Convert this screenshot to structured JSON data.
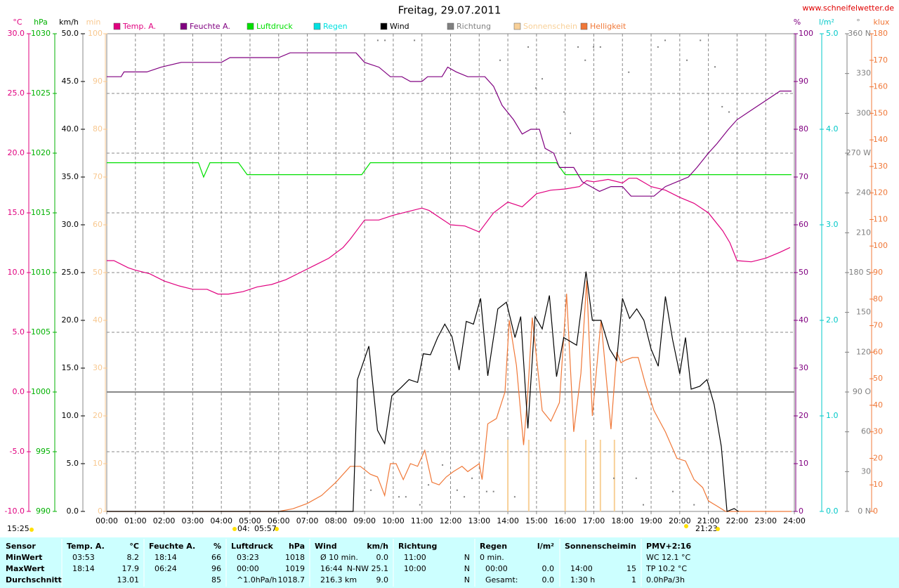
{
  "chart_data": {
    "type": "line",
    "title": "Freitag, 29.07.2011",
    "source": "www.schneifelwetter.de",
    "xlim": [
      0,
      24
    ],
    "xticks": [
      {
        "value": 0,
        "label": "00:00"
      },
      {
        "value": 1,
        "label": "01:00"
      },
      {
        "value": 2,
        "label": "02:00"
      },
      {
        "value": 3,
        "label": "03:00"
      },
      {
        "value": 4,
        "label": "04:00"
      },
      {
        "value": 5,
        "label": "05:00"
      },
      {
        "value": 6,
        "label": "06:00"
      },
      {
        "value": 7,
        "label": "07:00"
      },
      {
        "value": 8,
        "label": "08:00"
      },
      {
        "value": 9,
        "label": "09:00"
      },
      {
        "value": 10,
        "label": "10:00"
      },
      {
        "value": 11,
        "label": "11:00"
      },
      {
        "value": 12,
        "label": "12:00"
      },
      {
        "value": 13,
        "label": "13:00"
      },
      {
        "value": 14,
        "label": "14:00"
      },
      {
        "value": 15,
        "label": "15:00"
      },
      {
        "value": 16,
        "label": "16:00"
      },
      {
        "value": 17,
        "label": "17:00"
      },
      {
        "value": 18,
        "label": "18:00"
      },
      {
        "value": 19,
        "label": "19:00"
      },
      {
        "value": 20,
        "label": "20:00"
      },
      {
        "value": 21,
        "label": "21:00"
      },
      {
        "value": 22,
        "label": "22:00"
      },
      {
        "value": 23,
        "label": "23:00"
      },
      {
        "value": 24,
        "label": "24:00"
      }
    ],
    "grid": true,
    "axes": [
      {
        "unit": "°C",
        "side": "left",
        "color": "#e0007f",
        "grid": true,
        "zero_line": true,
        "ylim": [
          -10,
          30
        ],
        "yticks": [
          {
            "value": -10,
            "label": "-10.0"
          },
          {
            "value": -5,
            "label": "-5.0"
          },
          {
            "value": 0,
            "label": "0.0"
          },
          {
            "value": 5,
            "label": "5.0"
          },
          {
            "value": 10,
            "label": "10.0"
          },
          {
            "value": 15,
            "label": "15.0"
          },
          {
            "value": 20,
            "label": "20.0"
          },
          {
            "value": 25,
            "label": "25.0"
          },
          {
            "value": 30,
            "label": "30.0"
          }
        ]
      },
      {
        "unit": "hPa",
        "side": "left",
        "color": "#00b000",
        "ylim": [
          990,
          1030
        ],
        "yticks": [
          990,
          995,
          1000,
          1005,
          1010,
          1015,
          1020,
          1025,
          1030
        ]
      },
      {
        "unit": "km/h",
        "side": "left",
        "color": "#000000",
        "ylim": [
          0,
          50
        ],
        "yticks": [
          {
            "value": 0,
            "label": "0.0"
          },
          {
            "value": 5,
            "label": "5.0"
          },
          {
            "value": 10,
            "label": "10.0"
          },
          {
            "value": 15,
            "label": "15.0"
          },
          {
            "value": 20,
            "label": "20.0"
          },
          {
            "value": 25,
            "label": "25.0"
          },
          {
            "value": 30,
            "label": "30.0"
          },
          {
            "value": 35,
            "label": "35.0"
          },
          {
            "value": 40,
            "label": "40.0"
          },
          {
            "value": 45,
            "label": "45.0"
          },
          {
            "value": 50,
            "label": "50.0"
          }
        ]
      },
      {
        "unit": "min",
        "side": "left",
        "color": "#f8c890",
        "ylim": [
          0,
          100
        ],
        "yticks": [
          0,
          10,
          20,
          30,
          40,
          50,
          60,
          70,
          80,
          90,
          100
        ]
      },
      {
        "unit": "%",
        "side": "right",
        "color": "#800080",
        "ylim": [
          0,
          100
        ],
        "yticks": [
          0,
          10,
          20,
          30,
          40,
          50,
          60,
          70,
          80,
          90,
          100
        ]
      },
      {
        "unit": "l/m²",
        "side": "right",
        "color": "#00c8c8",
        "ylim": [
          0,
          5
        ],
        "yticks": [
          {
            "value": 0,
            "label": "0.0"
          },
          {
            "value": 1,
            "label": "1.0"
          },
          {
            "value": 2,
            "label": "2.0"
          },
          {
            "value": 3,
            "label": "3.0"
          },
          {
            "value": 4,
            "label": "4.0"
          },
          {
            "value": 5,
            "label": "5.0"
          }
        ]
      },
      {
        "unit": "°",
        "side": "right",
        "color": "#808080",
        "ylim": [
          0,
          360
        ],
        "yticks": [
          {
            "value": 0,
            "label": "0 N"
          },
          30,
          60,
          {
            "value": 90,
            "label": "90 O"
          },
          120,
          150,
          {
            "value": 180,
            "label": "180 S"
          },
          210,
          240,
          {
            "value": 270,
            "label": "270 W"
          },
          300,
          330,
          {
            "value": 360,
            "label": "360 N"
          }
        ]
      },
      {
        "unit": "klux",
        "side": "right",
        "color": "#f07838",
        "ylim": [
          0,
          180
        ],
        "yticks": [
          0,
          10,
          20,
          30,
          40,
          50,
          60,
          70,
          80,
          90,
          100,
          110,
          120,
          130,
          140,
          150,
          160,
          170,
          180
        ]
      }
    ],
    "series": [
      {
        "name": "Temp. A.",
        "color": "#e0007f",
        "axis": "°C",
        "style": "line",
        "x": [
          0,
          0.25,
          0.75,
          1,
          1.5,
          2,
          2.5,
          3,
          3.5,
          3.88,
          4.25,
          4.75,
          5.25,
          5.75,
          6.25,
          6.75,
          7.25,
          7.75,
          8.25,
          8.5,
          8.75,
          9,
          9.5,
          10,
          10.5,
          11,
          11.25,
          11.75,
          12,
          12.5,
          13,
          13.5,
          14,
          14.5,
          15,
          15.5,
          16,
          16.5,
          16.75,
          17,
          17.5,
          18,
          18.23,
          18.5,
          19,
          19.5,
          20,
          20.5,
          21,
          21.5,
          21.75,
          22,
          22.5,
          23,
          23.5,
          23.85
        ],
        "values": [
          11.0,
          11.0,
          10.4,
          10.2,
          9.9,
          9.3,
          8.9,
          8.6,
          8.6,
          8.2,
          8.2,
          8.4,
          8.8,
          9.0,
          9.4,
          10.0,
          10.6,
          11.2,
          12.1,
          12.8,
          13.6,
          14.4,
          14.4,
          14.8,
          15.1,
          15.4,
          15.2,
          14.4,
          14.0,
          13.9,
          13.4,
          15.0,
          15.9,
          15.5,
          16.6,
          16.9,
          17.0,
          17.2,
          17.7,
          17.6,
          17.8,
          17.5,
          17.9,
          17.9,
          17.2,
          16.9,
          16.3,
          15.8,
          15.0,
          13.5,
          12.5,
          11.0,
          10.9,
          11.2,
          11.7,
          12.1
        ]
      },
      {
        "name": "Feuchte A.",
        "color": "#800080",
        "axis": "%",
        "style": "line",
        "x": [
          0,
          0.5,
          0.6,
          1.4,
          1.9,
          2.6,
          4.0,
          4.3,
          6.0,
          6.4,
          8.7,
          9.0,
          9.5,
          9.9,
          10.3,
          10.6,
          11.0,
          11.2,
          11.7,
          11.9,
          12.2,
          12.6,
          13.2,
          13.5,
          13.8,
          14.2,
          14.5,
          14.8,
          15.1,
          15.3,
          15.6,
          15.8,
          16.3,
          16.6,
          16.9,
          17.2,
          17.6,
          18.0,
          18.3,
          19.1,
          19.5,
          19.9,
          20.3,
          20.6,
          21.0,
          21.3,
          21.7,
          22.0,
          22.5,
          23.0,
          23.5,
          23.9
        ],
        "values": [
          91,
          91,
          92,
          92,
          93,
          94,
          94,
          95,
          95,
          96,
          96,
          94,
          93,
          91,
          91,
          90,
          90,
          91,
          91,
          93,
          92,
          91,
          91,
          89,
          85,
          82,
          79,
          80,
          80,
          76,
          75,
          72,
          72,
          69,
          68,
          67,
          68,
          68,
          66,
          66,
          68,
          69,
          70,
          72,
          75,
          77,
          80,
          82,
          84,
          86,
          88,
          88
        ]
      },
      {
        "name": "Luftdruck",
        "color": "#00e000",
        "axis": "hPa",
        "style": "line",
        "x": [
          0,
          3.2,
          3.38,
          3.6,
          4.6,
          4.9,
          8.9,
          9.2,
          15.7,
          16.0,
          23.9
        ],
        "values": [
          1019.2,
          1019.2,
          1018.0,
          1019.2,
          1019.2,
          1018.2,
          1018.2,
          1019.2,
          1019.2,
          1018.2,
          1018.2
        ]
      },
      {
        "name": "Regen",
        "color": "#00e0e0",
        "axis": "l/m²",
        "style": "line",
        "x": [],
        "values": []
      },
      {
        "name": "Wind",
        "color": "#000000",
        "axis": "km/h",
        "style": "line",
        "x": [
          0,
          8.6,
          8.75,
          9.15,
          9.45,
          9.7,
          9.95,
          10.25,
          10.55,
          10.85,
          11.05,
          11.3,
          11.55,
          11.8,
          12.05,
          12.3,
          12.55,
          12.8,
          13.05,
          13.3,
          13.65,
          13.95,
          14.25,
          14.45,
          14.7,
          14.95,
          15.2,
          15.45,
          15.7,
          15.95,
          16.4,
          16.73,
          16.95,
          17.25,
          17.55,
          17.8,
          18.0,
          18.25,
          18.5,
          18.75,
          19.0,
          19.25,
          19.5,
          19.75,
          20.0,
          20.2,
          20.4,
          20.7,
          20.95,
          21.2,
          21.45,
          21.65,
          21.9,
          22.05
        ],
        "values": [
          0,
          0,
          13.8,
          17.3,
          8.5,
          7.1,
          12.1,
          12.9,
          13.8,
          13.5,
          16.5,
          16.4,
          18.2,
          19.6,
          18.3,
          14.8,
          19.9,
          19.6,
          22.3,
          14.2,
          21.2,
          21.9,
          18.2,
          20.4,
          8.7,
          20.4,
          19.1,
          22.6,
          14.1,
          18.2,
          17.4,
          25.1,
          20.0,
          20.0,
          17.0,
          15.8,
          22.3,
          20.2,
          21.2,
          20.0,
          17.0,
          15.2,
          22.5,
          18.0,
          14.4,
          18.2,
          12.8,
          13.1,
          13.8,
          11.2,
          6.8,
          0,
          0.3,
          0
        ]
      },
      {
        "name": "Richtung",
        "color": "#808080",
        "axis": "°",
        "style": "dots",
        "x": [
          9.22,
          9.46,
          9.71,
          10.2,
          10.44,
          10.74,
          10.93,
          11.23,
          11.72,
          12.23,
          12.48,
          12.75,
          13.26,
          13.5,
          13.73,
          14.24,
          14.71,
          14.98,
          15.2,
          15.96,
          16.18,
          16.45,
          16.7,
          16.99,
          17.23,
          17.7,
          18.22,
          18.48,
          18.73,
          19.24,
          19.49,
          19.76,
          20.25,
          20.5,
          20.72,
          21.23,
          21.48,
          21.72
        ],
        "values": [
          16,
          355,
          355,
          11,
          11,
          355,
          5,
          20,
          35,
          16,
          11,
          25,
          15,
          15,
          340,
          11,
          350,
          319,
          326,
          301,
          285,
          350,
          340,
          350,
          350,
          25,
          331,
          25,
          5,
          350,
          355,
          15,
          340,
          5,
          355,
          335,
          305,
          301
        ]
      },
      {
        "name": "Sonnenschein",
        "color": "#f8d098",
        "axis": "min",
        "style": "bars",
        "x": [
          14.0,
          14.73,
          16.0,
          16.72,
          17.23,
          17.72
        ],
        "values": [
          15,
          15,
          15,
          15,
          15,
          15
        ]
      },
      {
        "name": "Helligkeit",
        "color": "#f07838",
        "axis": "klux",
        "style": "line",
        "x": [
          0,
          6.0,
          6.5,
          7.0,
          7.5,
          8.0,
          8.5,
          8.85,
          9.2,
          9.45,
          9.7,
          9.9,
          10.1,
          10.35,
          10.6,
          10.85,
          11.1,
          11.35,
          11.6,
          11.85,
          12.1,
          12.4,
          12.6,
          13.0,
          13.1,
          13.3,
          13.6,
          13.9,
          14.05,
          14.3,
          14.55,
          14.7,
          14.85,
          15.2,
          15.5,
          15.8,
          16.05,
          16.3,
          16.55,
          16.75,
          16.95,
          17.25,
          17.6,
          17.8,
          17.95,
          18.1,
          18.35,
          18.55,
          18.8,
          19.1,
          19.5,
          19.9,
          20.2,
          20.5,
          20.8,
          21.0,
          21.3,
          21.6,
          23.9
        ],
        "values": [
          0,
          0,
          1,
          3,
          6,
          11,
          17,
          17,
          14,
          13,
          6,
          18,
          18,
          12,
          18,
          17,
          23,
          11,
          10,
          13,
          15,
          17,
          15,
          18,
          12,
          33,
          35,
          45,
          72,
          55,
          25,
          45,
          73,
          38,
          34,
          41,
          82,
          30,
          52,
          87,
          36,
          72,
          31,
          60,
          56,
          57,
          58,
          58,
          48,
          38,
          30,
          20,
          19,
          12,
          9,
          4,
          2,
          0,
          0
        ]
      }
    ],
    "sun": {
      "day_length": "15:25",
      "dawn": "04:",
      "sunrise": "05:57",
      "sunset": "21:23"
    }
  },
  "table": {
    "row_labels": [
      "Sensor",
      "MinWert",
      "MaxWert",
      "Durchschnitt"
    ],
    "columns": [
      {
        "header": "Temp. A.",
        "unit": "°C",
        "min": [
          "03:53",
          "8.2"
        ],
        "max": [
          "18:14",
          "17.9"
        ],
        "avg": [
          "13.01"
        ]
      },
      {
        "header": "Feuchte A.",
        "unit": "%",
        "min": [
          "18:14",
          "66"
        ],
        "max": [
          "06:24",
          "96"
        ],
        "avg": [
          "85"
        ]
      },
      {
        "header": "Luftdruck",
        "unit": "hPa",
        "min": [
          "03:23",
          "1018"
        ],
        "max": [
          "00:00",
          "1019"
        ],
        "avg": [
          "^1.0hPa/h",
          "1018.7"
        ]
      },
      {
        "header": "Wind",
        "unit": "km/h",
        "min": [
          "Ø 10 min.",
          "0.0"
        ],
        "max": [
          "16:44",
          "N-NW 25.1"
        ],
        "avg": [
          "216.3 km",
          "9.0"
        ]
      },
      {
        "header": "Richtung",
        "min": [
          "11:00",
          "N"
        ],
        "max": [
          "10:00",
          "N"
        ],
        "avg": [
          "N"
        ]
      },
      {
        "header": "Regen",
        "unit": "l/m²",
        "min": [
          "0 min."
        ],
        "max": [
          "00:00",
          "0.0"
        ],
        "avg": [
          "Gesamt:",
          "0.0"
        ]
      },
      {
        "header": "Sonnenschein",
        "unit": "min",
        "max": [
          "14:00",
          "15"
        ],
        "avg": [
          "1:30 h",
          "1"
        ]
      },
      {
        "header": "PMV+2:16",
        "min": [
          "WC 12.1 °C"
        ],
        "max": [
          "TP 10.2 °C"
        ],
        "avg": [
          "0.0hPa/3h"
        ]
      }
    ]
  }
}
